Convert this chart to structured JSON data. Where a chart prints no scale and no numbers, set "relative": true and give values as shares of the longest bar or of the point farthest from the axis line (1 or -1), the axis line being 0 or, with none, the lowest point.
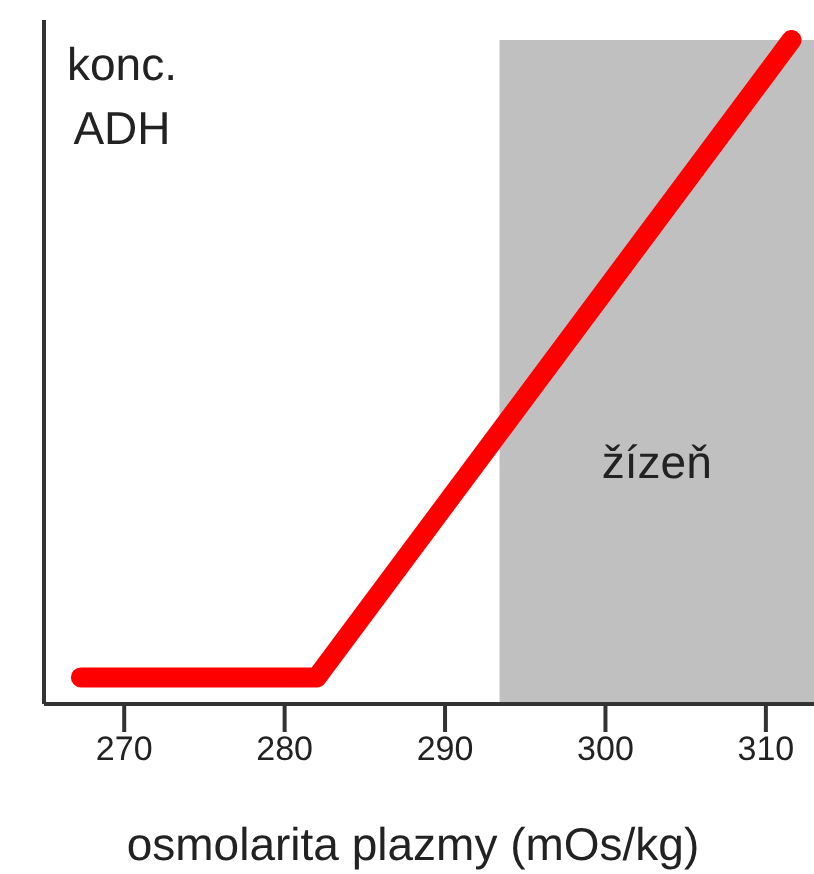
{
  "chart_data": {
    "type": "line",
    "relative": true,
    "ylabel": "konc. ADH",
    "xlabel": "osmolarita plazmy (mOs/kg)",
    "x": [
      267.3,
      282,
      311.6
    ],
    "series": [
      {
        "color": "#ff0000",
        "values": [
          0.04,
          0.04,
          1
        ]
      }
    ],
    "xlim": [
      265,
      313
    ],
    "xticks": [
      270,
      280,
      290,
      300,
      310
    ],
    "bands": [
      {
        "axis": "x",
        "from": 293.4,
        "to": 313,
        "label": "žízeň",
        "color": "#c0c0c0"
      }
    ],
    "marker": "none",
    "line_style": "solid"
  }
}
